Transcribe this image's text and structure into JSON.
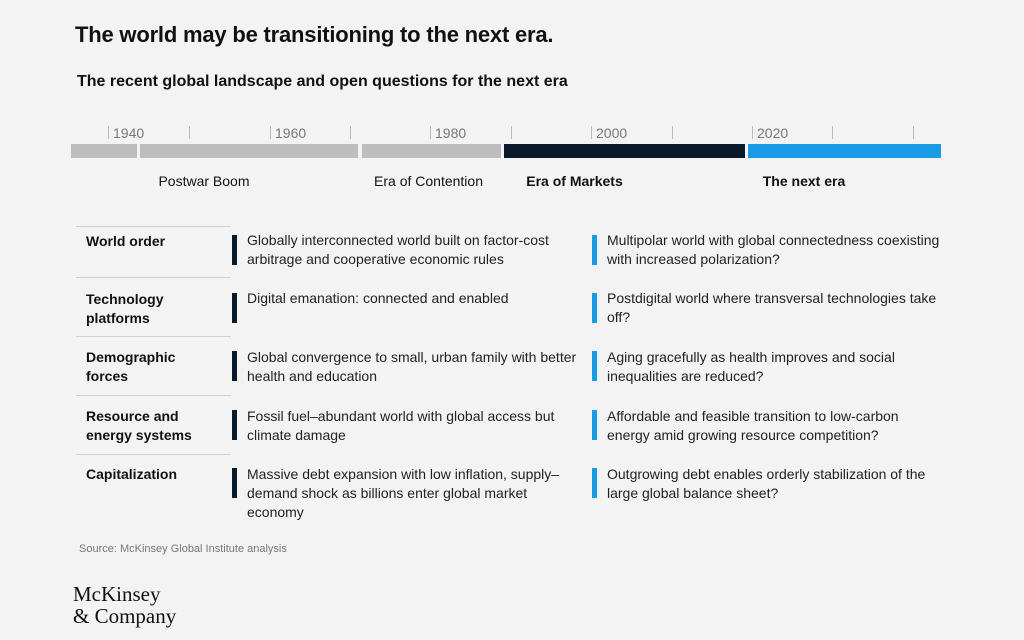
{
  "title": "The world may be transitioning to the next era.",
  "subtitle": "The recent global landscape and open questions for the next era",
  "timeline": {
    "years": [
      "1940",
      "1960",
      "1980",
      "2000",
      "2020"
    ],
    "eras": [
      {
        "name": "Postwar Boom",
        "color": "#bdbdbd",
        "bold": false
      },
      {
        "name": "Era of Contention",
        "color": "#bdbdbd",
        "bold": false
      },
      {
        "name": "Era of Markets",
        "color": "#0b1a2b",
        "bold": true
      },
      {
        "name": "The next era",
        "color": "#1a9be6",
        "bold": true
      }
    ]
  },
  "rows": [
    {
      "label": "World order",
      "markets": "Globally interconnected world built on factor-cost arbitrage and cooperative economic rules",
      "next": "Multipolar world with global connectedness coexisting with increased polarization?"
    },
    {
      "label": "Technology platforms",
      "markets": "Digital emanation: connected and enabled",
      "next": "Postdigital world where transversal technologies take off?"
    },
    {
      "label": "Demographic forces",
      "markets": "Global convergence to small, urban family with better health and education",
      "next": "Aging gracefully as health improves and social inequalities are reduced?"
    },
    {
      "label": "Resource and energy systems",
      "markets": "Fossil fuel–abundant world with global access but climate damage",
      "next": "Affordable and feasible transition to low-carbon energy amid growing resource competition?"
    },
    {
      "label": "Capitalization",
      "markets": "Massive debt expansion with low inflation, supply–demand shock as billions enter global market economy",
      "next": "Outgrowing debt enables orderly stabilization of the large global balance sheet?"
    }
  ],
  "source": "Source: McKinsey Global Institute analysis",
  "logo": {
    "line1": "McKinsey",
    "line2": "& Company"
  },
  "colors": {
    "markets": "#0b1a2b",
    "next": "#1a9be6",
    "past": "#bdbdbd"
  }
}
